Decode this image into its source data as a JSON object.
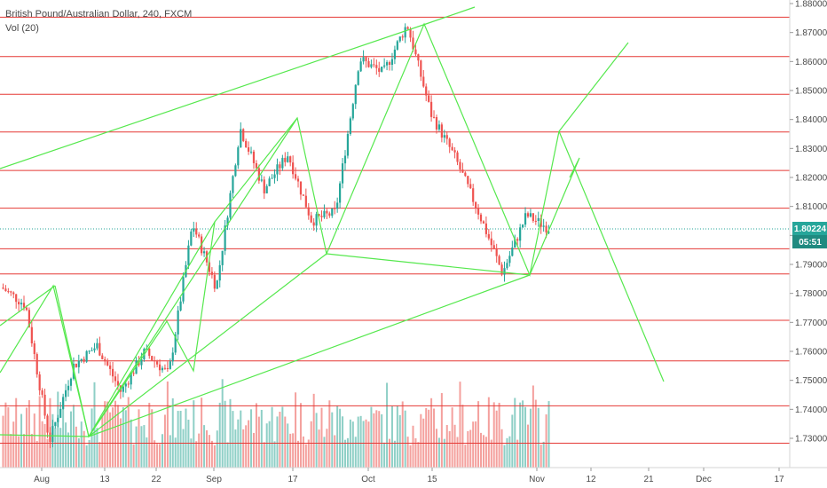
{
  "legend": {
    "title": "British Pound/Australian Dollar, 240, FXCM",
    "volume": "Vol (20)"
  },
  "price_badge": {
    "price": "1.80224",
    "countdown": "05:51"
  },
  "colors": {
    "up": "#26a69a",
    "down": "#ef5350",
    "up_vol": "#8ecfc6",
    "down_vol": "#f4a09d",
    "horizontal_lines": "#e53935",
    "drawings": "#55e84d",
    "axis_text": "#4a4a4a",
    "badge_price": "#26a69a",
    "badge_time": "#1f8a80"
  },
  "chart_data": {
    "type": "candlestick",
    "title": "British Pound/Australian Dollar, 240, FXCM",
    "x_tick_labels": [
      "Aug",
      "13",
      "22",
      "Sep",
      "17",
      "Oct",
      "15",
      "Nov",
      "12",
      "21",
      "Dec",
      "17"
    ],
    "y_tick_labels": [
      "1.88000",
      "1.87000",
      "1.86000",
      "1.85000",
      "1.84000",
      "1.83000",
      "1.82000",
      "1.81000",
      "1.80000",
      "1.79000",
      "1.78000",
      "1.77000",
      "1.76000",
      "1.75000",
      "1.74000",
      "1.73000"
    ],
    "ylim": [
      1.7245,
      1.8825
    ],
    "last_price": 1.80224,
    "horizontal_levels": [
      1.8753,
      1.8617,
      1.8487,
      1.8357,
      1.8224,
      1.8094,
      1.7954,
      1.7867,
      1.7707,
      1.7567,
      1.7412,
      1.7283
    ],
    "price_path": [
      [
        "Aug",
        1.782
      ],
      [
        "Aug",
        1.776
      ],
      [
        "13",
        1.729
      ],
      [
        "13",
        1.755
      ],
      [
        "13",
        1.762
      ],
      [
        "22",
        1.746
      ],
      [
        "22",
        1.76
      ],
      [
        "22",
        1.752
      ],
      [
        "Sep",
        1.804
      ],
      [
        "Sep",
        1.782
      ],
      [
        "Sep",
        1.837
      ],
      [
        "17",
        1.816
      ],
      [
        "17",
        1.828
      ],
      [
        "17",
        1.805
      ],
      [
        "Oct",
        1.808
      ],
      [
        "Oct",
        1.861
      ],
      [
        "15",
        1.856
      ],
      [
        "15",
        1.873
      ],
      [
        "15",
        1.842
      ],
      [
        "Nov",
        1.827
      ],
      [
        "Nov",
        1.808
      ],
      [
        "Nov",
        1.787
      ],
      [
        "Nov",
        1.807
      ],
      [
        "Nov",
        1.8022
      ]
    ],
    "volume_series": "Vol (20)",
    "grid": false,
    "legend_position": "top-left"
  }
}
